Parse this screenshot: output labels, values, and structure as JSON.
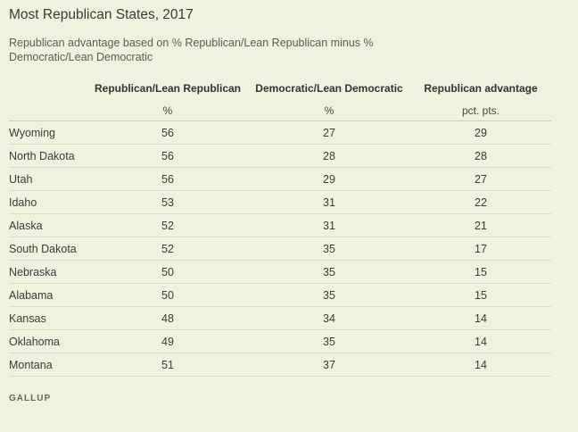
{
  "title": "Most Republican States, 2017",
  "subtitle": "Republican advantage based on % Republican/Lean Republican minus % Democratic/Lean Democratic",
  "source": "GALLUP",
  "chart_data": {
    "type": "table",
    "columns": [
      "",
      "Republican/Lean Republican",
      "Democratic/Lean Democratic",
      "Republican advantage"
    ],
    "units": [
      "",
      "%",
      "%",
      "pct. pts."
    ],
    "rows": [
      [
        "Wyoming",
        "56",
        "27",
        "29"
      ],
      [
        "North Dakota",
        "56",
        "28",
        "28"
      ],
      [
        "Utah",
        "56",
        "29",
        "27"
      ],
      [
        "Idaho",
        "53",
        "31",
        "22"
      ],
      [
        "Alaska",
        "52",
        "31",
        "21"
      ],
      [
        "South Dakota",
        "52",
        "35",
        "17"
      ],
      [
        "Nebraska",
        "50",
        "35",
        "15"
      ],
      [
        "Alabama",
        "50",
        "35",
        "15"
      ],
      [
        "Kansas",
        "48",
        "34",
        "14"
      ],
      [
        "Oklahoma",
        "49",
        "35",
        "14"
      ],
      [
        "Montana",
        "51",
        "37",
        "14"
      ]
    ]
  }
}
